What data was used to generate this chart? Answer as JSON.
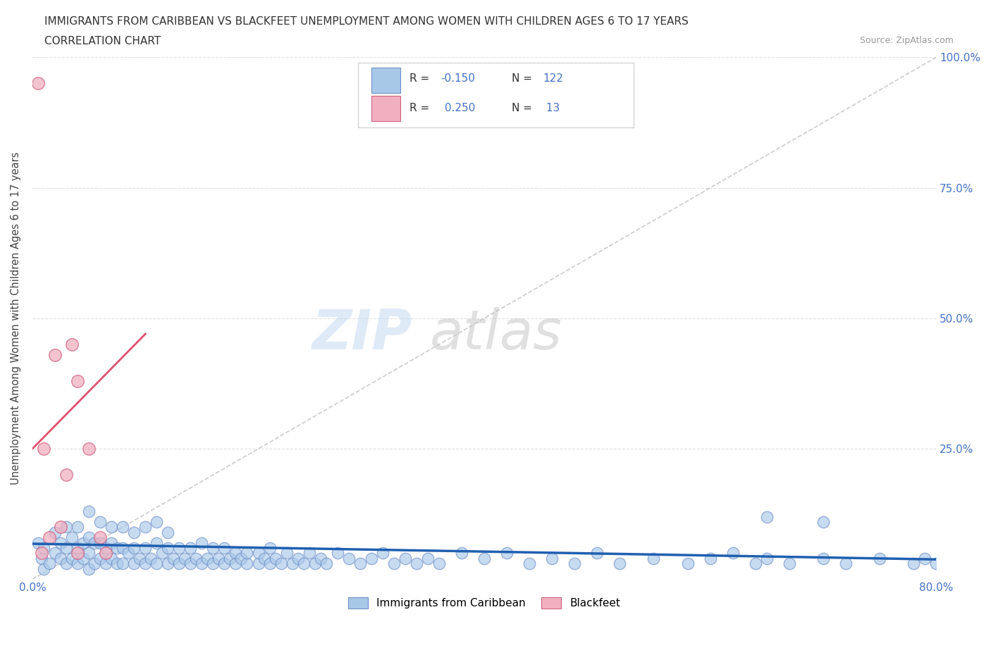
{
  "title_line1": "IMMIGRANTS FROM CARIBBEAN VS BLACKFEET UNEMPLOYMENT AMONG WOMEN WITH CHILDREN AGES 6 TO 17 YEARS",
  "title_line2": "CORRELATION CHART",
  "source_text": "Source: ZipAtlas.com",
  "ylabel": "Unemployment Among Women with Children Ages 6 to 17 years",
  "xlim": [
    0.0,
    0.8
  ],
  "ylim": [
    0.0,
    1.0
  ],
  "blue_color": "#a8c8e8",
  "pink_color": "#f0b0c0",
  "blue_edge_color": "#7090c8",
  "pink_edge_color": "#d06080",
  "blue_line_color": "#2060b0",
  "pink_line_color": "#e05070",
  "legend_blue_label": "Immigrants from Caribbean",
  "legend_pink_label": "Blackfeet",
  "blue_scatter_x": [
    0.005,
    0.008,
    0.01,
    0.01,
    0.015,
    0.02,
    0.02,
    0.025,
    0.025,
    0.03,
    0.03,
    0.03,
    0.035,
    0.035,
    0.04,
    0.04,
    0.04,
    0.045,
    0.045,
    0.05,
    0.05,
    0.05,
    0.05,
    0.055,
    0.055,
    0.06,
    0.06,
    0.06,
    0.065,
    0.065,
    0.07,
    0.07,
    0.07,
    0.075,
    0.075,
    0.08,
    0.08,
    0.08,
    0.085,
    0.09,
    0.09,
    0.09,
    0.095,
    0.1,
    0.1,
    0.1,
    0.105,
    0.11,
    0.11,
    0.11,
    0.115,
    0.12,
    0.12,
    0.12,
    0.125,
    0.13,
    0.13,
    0.135,
    0.14,
    0.14,
    0.145,
    0.15,
    0.15,
    0.155,
    0.16,
    0.16,
    0.165,
    0.17,
    0.17,
    0.175,
    0.18,
    0.18,
    0.185,
    0.19,
    0.19,
    0.2,
    0.2,
    0.205,
    0.21,
    0.21,
    0.215,
    0.22,
    0.225,
    0.23,
    0.235,
    0.24,
    0.245,
    0.25,
    0.255,
    0.26,
    0.27,
    0.28,
    0.29,
    0.3,
    0.31,
    0.32,
    0.33,
    0.34,
    0.35,
    0.36,
    0.38,
    0.4,
    0.42,
    0.44,
    0.46,
    0.48,
    0.5,
    0.52,
    0.55,
    0.58,
    0.6,
    0.62,
    0.64,
    0.65,
    0.67,
    0.7,
    0.72,
    0.75,
    0.78,
    0.79,
    0.8,
    0.65,
    0.7
  ],
  "blue_scatter_y": [
    0.07,
    0.04,
    0.02,
    0.06,
    0.03,
    0.05,
    0.09,
    0.04,
    0.07,
    0.03,
    0.06,
    0.1,
    0.04,
    0.08,
    0.03,
    0.06,
    0.1,
    0.04,
    0.07,
    0.02,
    0.05,
    0.08,
    0.13,
    0.03,
    0.07,
    0.04,
    0.07,
    0.11,
    0.03,
    0.06,
    0.04,
    0.07,
    0.1,
    0.03,
    0.06,
    0.03,
    0.06,
    0.1,
    0.05,
    0.03,
    0.06,
    0.09,
    0.04,
    0.03,
    0.06,
    0.1,
    0.04,
    0.03,
    0.07,
    0.11,
    0.05,
    0.03,
    0.06,
    0.09,
    0.04,
    0.03,
    0.06,
    0.04,
    0.03,
    0.06,
    0.04,
    0.03,
    0.07,
    0.04,
    0.03,
    0.06,
    0.04,
    0.03,
    0.06,
    0.04,
    0.03,
    0.05,
    0.04,
    0.03,
    0.05,
    0.03,
    0.05,
    0.04,
    0.03,
    0.06,
    0.04,
    0.03,
    0.05,
    0.03,
    0.04,
    0.03,
    0.05,
    0.03,
    0.04,
    0.03,
    0.05,
    0.04,
    0.03,
    0.04,
    0.05,
    0.03,
    0.04,
    0.03,
    0.04,
    0.03,
    0.05,
    0.04,
    0.05,
    0.03,
    0.04,
    0.03,
    0.05,
    0.03,
    0.04,
    0.03,
    0.04,
    0.05,
    0.03,
    0.04,
    0.03,
    0.04,
    0.03,
    0.04,
    0.03,
    0.04,
    0.03,
    0.12,
    0.11
  ],
  "pink_scatter_x": [
    0.005,
    0.008,
    0.01,
    0.015,
    0.02,
    0.025,
    0.03,
    0.035,
    0.04,
    0.04,
    0.05,
    0.06,
    0.065
  ],
  "pink_scatter_y": [
    0.95,
    0.05,
    0.25,
    0.08,
    0.43,
    0.1,
    0.2,
    0.45,
    0.05,
    0.38,
    0.25,
    0.08,
    0.05
  ],
  "ref_line_x": [
    0.0,
    0.8
  ],
  "ref_line_y": [
    0.0,
    1.0
  ],
  "blue_trend_x": [
    0.0,
    0.8
  ],
  "blue_trend_y": [
    0.068,
    0.038
  ],
  "pink_trend_x": [
    0.0,
    0.1
  ],
  "pink_trend_y": [
    0.25,
    0.47
  ]
}
